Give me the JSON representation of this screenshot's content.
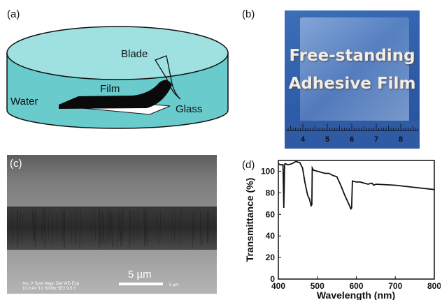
{
  "panels": {
    "a": {
      "label": "(a)",
      "labels": {
        "blade": "Blade",
        "film": "Film",
        "water": "Water",
        "glass": "Glass"
      }
    },
    "b": {
      "label": "(b)",
      "caption_line1": "Free-standing",
      "caption_line2": "Adhesive Film",
      "ruler_numbers": [
        "4",
        "5",
        "6",
        "7",
        "8"
      ]
    },
    "c": {
      "label": "(c)",
      "scale_label": "5 µm",
      "meta_line1": "Acc.V  Spot Magn   Det  WD  Exp",
      "meta_line2": "10.0 kV 3.0  5000x   SE2  9.5  0",
      "meta_scale": "5 µm"
    },
    "d": {
      "label": "(d)"
    }
  },
  "chart_data": {
    "type": "line",
    "xlabel": "Wavelength (nm)",
    "ylabel": "Transmittance (%)",
    "xlim": [
      400,
      800
    ],
    "ylim": [
      0,
      110
    ],
    "xticks": [
      400,
      500,
      600,
      700,
      800
    ],
    "yticks": [
      0,
      20,
      40,
      60,
      80,
      100
    ],
    "grid": false,
    "series": [
      {
        "name": "",
        "x": [
          400,
          405,
          412,
          414,
          416,
          417,
          418,
          425,
          435,
          445,
          455,
          462,
          468,
          475,
          480,
          484,
          486,
          487,
          490,
          500,
          510,
          520,
          530,
          540,
          550,
          560,
          570,
          580,
          586,
          588,
          590,
          600,
          610,
          620,
          630,
          640,
          645,
          650,
          700,
          750,
          800
        ],
        "y": [
          107,
          106,
          106,
          66,
          105,
          107,
          107,
          106,
          107,
          109,
          108,
          103,
          90,
          78,
          74,
          68,
          69,
          103,
          101,
          100,
          99,
          98,
          98,
          96,
          95,
          87,
          78,
          70,
          65,
          66,
          91,
          90,
          90,
          89,
          88,
          89,
          87,
          88,
          87,
          85,
          83
        ]
      }
    ]
  }
}
